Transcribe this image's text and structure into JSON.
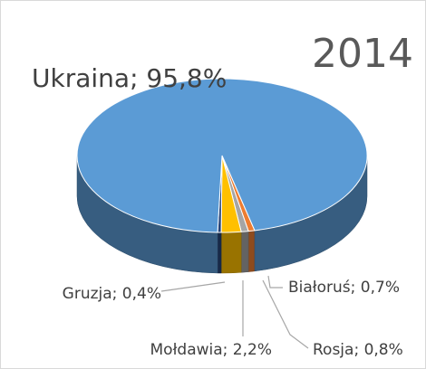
{
  "chart_data": {
    "type": "pie3d",
    "title": "2014",
    "value_labels": [
      "Białoruś; 0,7%",
      "Rosja; 0,8%",
      "Mołdawia; 2,2%",
      "Gruzja; 0,4%",
      "Ukraina; 95,8%"
    ],
    "values": [
      0.7,
      0.8,
      2.2,
      0.4,
      95.8
    ],
    "colors": [
      "#ed7d31",
      "#a5a5a5",
      "#ffc000",
      "#264478",
      "#5b9bd5"
    ]
  }
}
